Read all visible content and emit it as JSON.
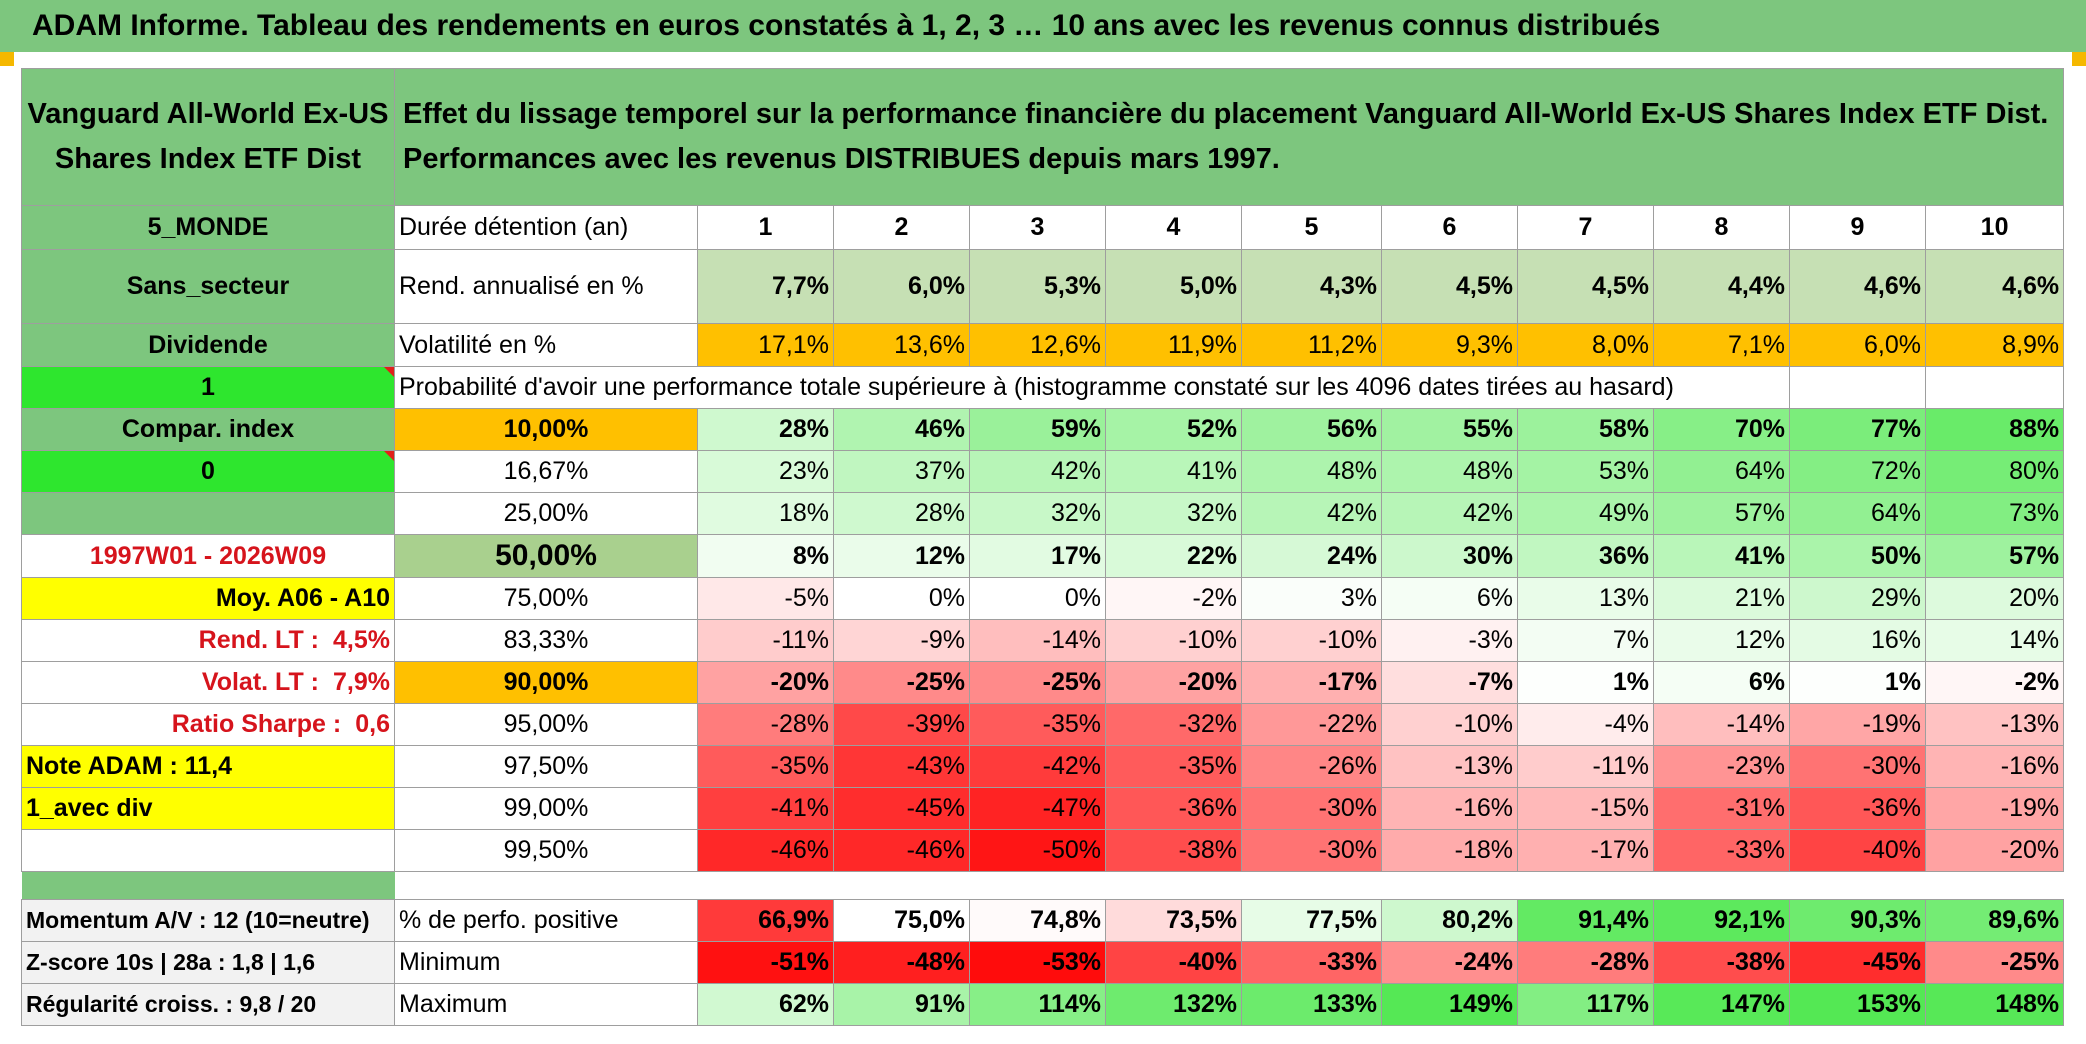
{
  "title": "ADAM Informe. Tableau des rendements en euros constatés à 1, 2, 3 … 10 ans avec les revenus connus distribués",
  "fund_name": "Vanguard All-World Ex-US Shares Index ETF Dist",
  "description_line1": "Effet du lissage temporel sur la performance financière du placement Vanguard All-World Ex-US Shares Index ETF Dist.",
  "description_line2": "Performances avec les revenus DISTRIBUES depuis mars 1997.",
  "left_labels": {
    "category": "5_MONDE",
    "sector": "Sans_secteur",
    "type": "Dividende",
    "flag1": "1",
    "compar": "Compar. index",
    "flag0": "0",
    "period": "1997W01 - 2026W09",
    "moy": "Moy. A06 - A10",
    "rend_lt_label": "Rend. LT :",
    "rend_lt_value": "4,5%",
    "volat_lt_label": "Volat. LT :",
    "volat_lt_value": "7,9%",
    "sharpe_label": "Ratio Sharpe :",
    "sharpe_value": "0,6",
    "note_adam": "Note ADAM : 11,4",
    "avec_div": "1_avec div",
    "momentum": "Momentum A/V : 12 (10=neutre)",
    "zscore": "Z-score 10s | 28a : 1,8 | 1,6",
    "regularite": "Régularité croiss. : 9,8 / 20"
  },
  "row_labels": {
    "duree": "Durée détention (an)",
    "rend": "Rend. annualisé en %",
    "volat": "Volatilité en %",
    "probability": "Probabilité d'avoir une performance totale supérieure à (histogramme constaté sur les 4096 dates tirées au hasard)",
    "positive": "% de perfo. positive",
    "minimum": "Minimum",
    "maximum": "Maximum"
  },
  "years": [
    "1",
    "2",
    "3",
    "4",
    "5",
    "6",
    "7",
    "8",
    "9",
    "10"
  ],
  "rend": [
    "7,7%",
    "6,0%",
    "5,3%",
    "5,0%",
    "4,3%",
    "4,5%",
    "4,5%",
    "4,4%",
    "4,6%",
    "4,6%"
  ],
  "volat": [
    "17,1%",
    "13,6%",
    "12,6%",
    "11,9%",
    "11,2%",
    "9,3%",
    "8,0%",
    "7,1%",
    "6,0%",
    "8,9%"
  ],
  "percentiles": [
    {
      "label": "10,00%",
      "style": "orange",
      "bold": true,
      "values": [
        "28%",
        "46%",
        "59%",
        "52%",
        "56%",
        "55%",
        "58%",
        "70%",
        "77%",
        "88%"
      ]
    },
    {
      "label": "16,67%",
      "style": "",
      "bold": false,
      "values": [
        "23%",
        "37%",
        "42%",
        "41%",
        "48%",
        "48%",
        "53%",
        "64%",
        "72%",
        "80%"
      ]
    },
    {
      "label": "25,00%",
      "style": "",
      "bold": false,
      "values": [
        "18%",
        "28%",
        "32%",
        "32%",
        "42%",
        "42%",
        "49%",
        "57%",
        "64%",
        "73%"
      ]
    },
    {
      "label": "50,00%",
      "style": "sage",
      "bold": true,
      "values": [
        "8%",
        "12%",
        "17%",
        "22%",
        "24%",
        "30%",
        "36%",
        "41%",
        "50%",
        "57%"
      ]
    },
    {
      "label": "75,00%",
      "style": "",
      "bold": false,
      "values": [
        "-5%",
        "0%",
        "0%",
        "-2%",
        "3%",
        "6%",
        "13%",
        "21%",
        "29%",
        "20%"
      ]
    },
    {
      "label": "83,33%",
      "style": "",
      "bold": false,
      "values": [
        "-11%",
        "-9%",
        "-14%",
        "-10%",
        "-10%",
        "-3%",
        "7%",
        "12%",
        "16%",
        "14%"
      ]
    },
    {
      "label": "90,00%",
      "style": "orange",
      "bold": true,
      "values": [
        "-20%",
        "-25%",
        "-25%",
        "-20%",
        "-17%",
        "-7%",
        "1%",
        "6%",
        "1%",
        "-2%"
      ]
    },
    {
      "label": "95,00%",
      "style": "",
      "bold": false,
      "values": [
        "-28%",
        "-39%",
        "-35%",
        "-32%",
        "-22%",
        "-10%",
        "-4%",
        "-14%",
        "-19%",
        "-13%"
      ]
    },
    {
      "label": "97,50%",
      "style": "",
      "bold": false,
      "values": [
        "-35%",
        "-43%",
        "-42%",
        "-35%",
        "-26%",
        "-13%",
        "-11%",
        "-23%",
        "-30%",
        "-16%"
      ]
    },
    {
      "label": "99,00%",
      "style": "",
      "bold": false,
      "values": [
        "-41%",
        "-45%",
        "-47%",
        "-36%",
        "-30%",
        "-16%",
        "-15%",
        "-31%",
        "-36%",
        "-19%"
      ]
    },
    {
      "label": "99,50%",
      "style": "",
      "bold": false,
      "values": [
        "-46%",
        "-46%",
        "-50%",
        "-38%",
        "-30%",
        "-18%",
        "-17%",
        "-33%",
        "-40%",
        "-20%"
      ]
    }
  ],
  "positive": [
    "66,9%",
    "75,0%",
    "74,8%",
    "73,5%",
    "77,5%",
    "80,2%",
    "91,4%",
    "92,1%",
    "90,3%",
    "89,6%"
  ],
  "minimum": [
    "-51%",
    "-48%",
    "-53%",
    "-40%",
    "-33%",
    "-24%",
    "-28%",
    "-38%",
    "-45%",
    "-25%"
  ],
  "maximum": [
    "62%",
    "91%",
    "114%",
    "132%",
    "133%",
    "149%",
    "117%",
    "147%",
    "153%",
    "148%"
  ],
  "colors": {
    "header_green": "#7dc67e",
    "bright_green": "#2ee62e",
    "yellow": "#ffff00",
    "orange": "#ffc000",
    "sage": "#a9d08e",
    "red_text": "#d6141c"
  }
}
